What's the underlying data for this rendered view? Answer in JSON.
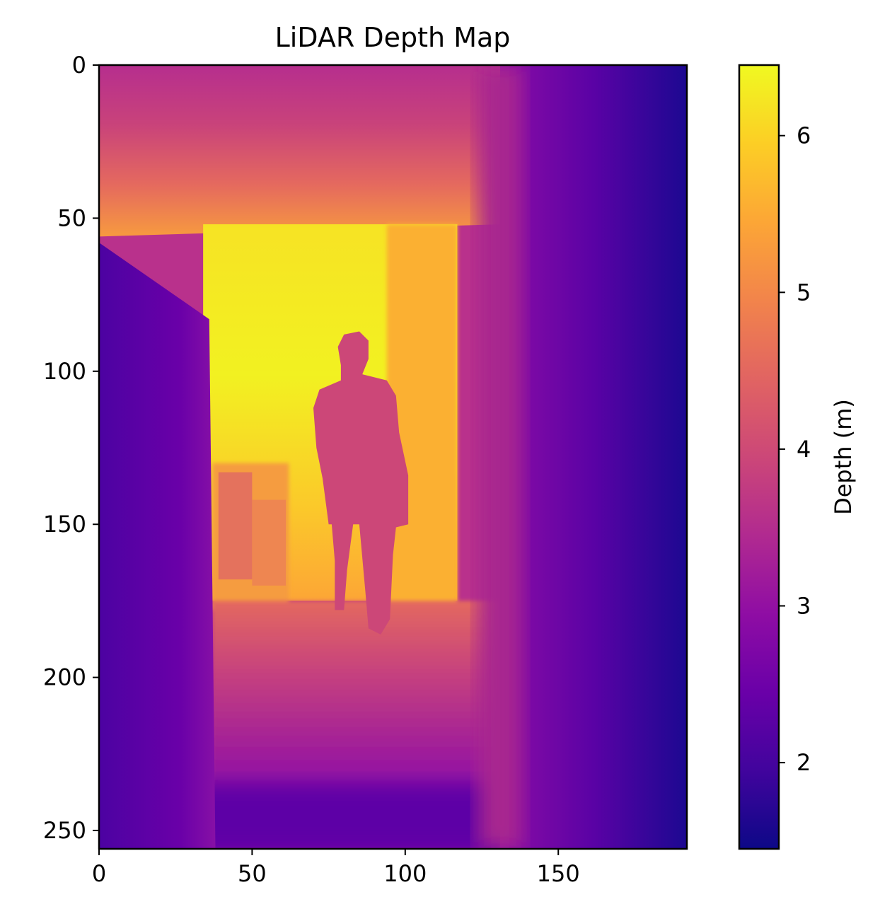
{
  "chart_data": {
    "type": "heatmap",
    "title": "LiDAR Depth Map",
    "xlabel": "",
    "ylabel": "",
    "x_range": [
      0,
      192
    ],
    "y_range": [
      0,
      256
    ],
    "y_inverted": true,
    "x_ticks": [
      "0",
      "50",
      "100",
      "150"
    ],
    "y_ticks": [
      "0",
      "50",
      "100",
      "150",
      "200",
      "250"
    ],
    "colormap": "plasma",
    "colorbar": {
      "label": "Depth (m)",
      "range": [
        1.45,
        6.45
      ],
      "ticks": [
        "2",
        "3",
        "4",
        "5",
        "6"
      ]
    },
    "scene": {
      "description_regions": [
        {
          "region": "left wall",
          "x": [
            0,
            37
          ],
          "y": [
            58,
            256
          ],
          "depth": 2.1
        },
        {
          "region": "right wall",
          "x": [
            131,
            192
          ],
          "y": [
            0,
            256
          ],
          "depth": 1.9
        },
        {
          "region": "ceiling",
          "x": [
            0,
            131
          ],
          "y": [
            0,
            52
          ],
          "depth": 4.4
        },
        {
          "region": "floor",
          "x": [
            37,
            131
          ],
          "y": [
            180,
            256
          ],
          "depth": 2.6
        },
        {
          "region": "corridor end",
          "x": [
            34,
            117
          ],
          "y": [
            52,
            175
          ],
          "depth": 5.9
        },
        {
          "region": "person",
          "x": [
            70,
            104
          ],
          "y": [
            88,
            186
          ],
          "depth": 3.9
        }
      ]
    }
  }
}
